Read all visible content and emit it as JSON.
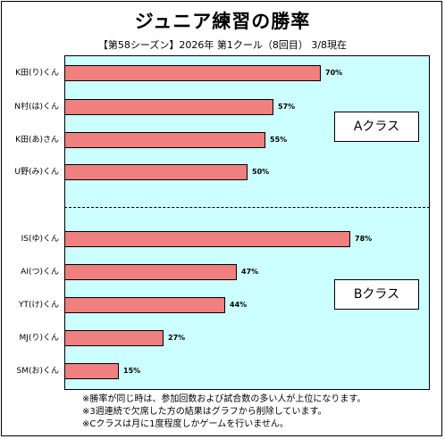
{
  "chart_data": {
    "type": "bar",
    "orientation": "horizontal",
    "title": "ジュニア練習の勝率",
    "subtitle": "【第58シーズン】2026年 第1クール（8回目） 3/8現在",
    "xlim": [
      0,
      100
    ],
    "groups": [
      {
        "label": "Aクラス",
        "categories": [
          "K田(り)くん",
          "N村(は)くん",
          "K田(あ)さん",
          "U野(み)くん"
        ],
        "values": [
          70,
          57,
          55,
          50
        ],
        "value_labels": [
          "70%",
          "57%",
          "55%",
          "50%"
        ]
      },
      {
        "label": "Bクラス",
        "categories": [
          "IS(ゆ)くん",
          "AI(つ)くん",
          "YT(け)くん",
          "MJ(り)くん",
          "SM(お)くん"
        ],
        "values": [
          78,
          47,
          44,
          27,
          15
        ],
        "value_labels": [
          "78%",
          "47%",
          "44%",
          "27%",
          "15%"
        ]
      }
    ],
    "colors": {
      "bar": "#f07f7f",
      "plot_background": "#ccffff"
    }
  },
  "notes": [
    "※勝率が同じ時は、参加回数および試合数の多い人が上位になります。",
    "※3週連続で欠席した方の結果はグラフから削除しています。",
    "※Cクラスは月に1度程度しかゲームを行いません。"
  ]
}
